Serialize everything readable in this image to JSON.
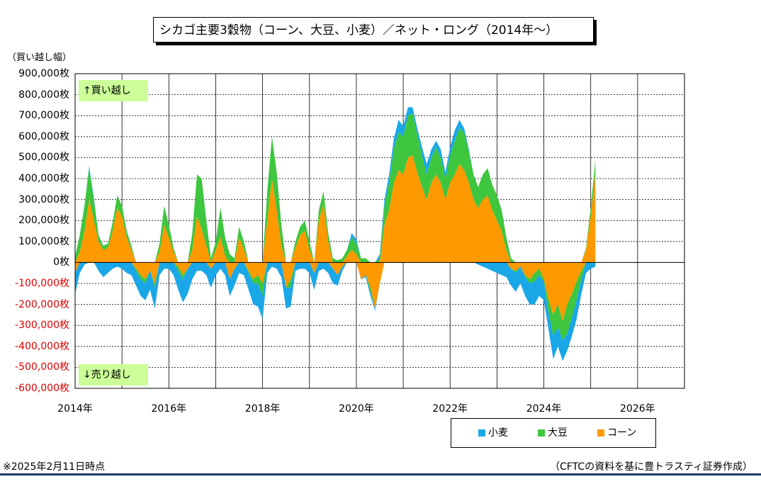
{
  "title": "シカゴ主要3穀物（コーン、大豆、小麦）／ネット・ロング（2014年～）",
  "unit_label": "（買い越し幅）",
  "annotations": {
    "long": "↑買い越し",
    "short": "↓売り越し"
  },
  "legend": [
    {
      "name": "小麦",
      "color": "#1aa7e8"
    },
    {
      "name": "大豆",
      "color": "#3ec63e"
    },
    {
      "name": "コーン",
      "color": "#ff9900"
    }
  ],
  "notes": {
    "date": "※2025年2月11日時点",
    "source": "（CFTCの資料を基に豊トラスティ証券作成）"
  },
  "colors": {
    "wheat": "#1aa7e8",
    "soybean": "#3ec63e",
    "corn": "#ff9900",
    "negative_label": "#e00000"
  },
  "chart_data": {
    "type": "area",
    "stacked": true,
    "x_unit": "year",
    "xlim": [
      2014,
      2027
    ],
    "ylim": [
      -600000,
      900000
    ],
    "y_ticks": [
      "900,000枚",
      "800,000枚",
      "700,000枚",
      "600,000枚",
      "500,000枚",
      "400,000枚",
      "300,000枚",
      "200,000枚",
      "100,000枚",
      "0枚",
      "-100,000枚",
      "-200,000枚",
      "-300,000枚",
      "-400,000枚",
      "-500,000枚",
      "-600,000枚"
    ],
    "y_tick_values": [
      900000,
      800000,
      700000,
      600000,
      500000,
      400000,
      300000,
      200000,
      100000,
      0,
      -100000,
      -200000,
      -300000,
      -400000,
      -500000,
      -600000
    ],
    "x_ticks": [
      "2014年",
      "2016年",
      "2018年",
      "2020年",
      "2022年",
      "2024年",
      "2026年"
    ],
    "x_tick_values": [
      2014,
      2016,
      2018,
      2020,
      2022,
      2024,
      2026
    ],
    "grid": true,
    "legend_position": "bottom-right",
    "x": [
      2014.0,
      2014.1,
      2014.2,
      2014.3,
      2014.4,
      2014.5,
      2014.6,
      2014.7,
      2014.8,
      2014.9,
      2015.0,
      2015.1,
      2015.2,
      2015.3,
      2015.4,
      2015.5,
      2015.6,
      2015.7,
      2015.8,
      2015.9,
      2016.0,
      2016.1,
      2016.2,
      2016.3,
      2016.4,
      2016.5,
      2016.6,
      2016.7,
      2016.8,
      2016.9,
      2017.0,
      2017.1,
      2017.2,
      2017.3,
      2017.4,
      2017.5,
      2017.6,
      2017.7,
      2017.8,
      2017.9,
      2018.0,
      2018.1,
      2018.2,
      2018.3,
      2018.4,
      2018.5,
      2018.6,
      2018.7,
      2018.8,
      2018.9,
      2019.0,
      2019.1,
      2019.2,
      2019.3,
      2019.4,
      2019.5,
      2019.6,
      2019.7,
      2019.8,
      2019.9,
      2020.0,
      2020.1,
      2020.2,
      2020.3,
      2020.4,
      2020.5,
      2020.6,
      2020.7,
      2020.8,
      2020.9,
      2021.0,
      2021.1,
      2021.2,
      2021.3,
      2021.4,
      2021.5,
      2021.6,
      2021.7,
      2021.8,
      2021.9,
      2022.0,
      2022.1,
      2022.2,
      2022.3,
      2022.4,
      2022.5,
      2022.6,
      2022.7,
      2022.8,
      2022.9,
      2023.0,
      2023.1,
      2023.2,
      2023.3,
      2023.4,
      2023.5,
      2023.6,
      2023.7,
      2023.8,
      2023.9,
      2024.0,
      2024.1,
      2024.2,
      2024.3,
      2024.4,
      2024.5,
      2024.6,
      2024.7,
      2024.8,
      2024.9,
      2025.0,
      2025.1
    ],
    "series": [
      {
        "name": "コーン",
        "values": [
          -50000,
          50000,
          150000,
          300000,
          200000,
          100000,
          60000,
          70000,
          150000,
          260000,
          220000,
          120000,
          60000,
          -30000,
          -60000,
          -80000,
          -40000,
          -100000,
          50000,
          180000,
          120000,
          50000,
          -20000,
          -60000,
          -30000,
          60000,
          220000,
          160000,
          80000,
          -30000,
          60000,
          120000,
          30000,
          -80000,
          -30000,
          120000,
          60000,
          -40000,
          -80000,
          -60000,
          -100000,
          200000,
          400000,
          250000,
          80000,
          -120000,
          -80000,
          70000,
          130000,
          150000,
          60000,
          -50000,
          200000,
          280000,
          100000,
          -30000,
          -60000,
          -20000,
          30000,
          60000,
          40000,
          -80000,
          -60000,
          -120000,
          -220000,
          -100000,
          180000,
          250000,
          380000,
          440000,
          420000,
          500000,
          510000,
          430000,
          360000,
          300000,
          380000,
          420000,
          380000,
          300000,
          380000,
          420000,
          470000,
          440000,
          380000,
          300000,
          260000,
          300000,
          320000,
          250000,
          200000,
          150000,
          60000,
          -30000,
          -40000,
          -20000,
          -60000,
          -80000,
          -50000,
          -30000,
          -80000,
          -180000,
          -250000,
          -200000,
          -280000,
          -200000,
          -150000,
          -90000,
          -40000,
          60000,
          220000,
          430000
        ]
      },
      {
        "name": "大豆",
        "values": [
          30000,
          80000,
          120000,
          150000,
          100000,
          30000,
          20000,
          20000,
          40000,
          60000,
          50000,
          30000,
          20000,
          -10000,
          -20000,
          -20000,
          0,
          -20000,
          40000,
          90000,
          60000,
          20000,
          -20000,
          -20000,
          0,
          80000,
          200000,
          240000,
          120000,
          20000,
          40000,
          140000,
          90000,
          40000,
          20000,
          50000,
          40000,
          -10000,
          -20000,
          -40000,
          -60000,
          140000,
          200000,
          180000,
          100000,
          0,
          -40000,
          30000,
          40000,
          50000,
          40000,
          0,
          50000,
          60000,
          40000,
          20000,
          10000,
          20000,
          30000,
          60000,
          50000,
          20000,
          20000,
          -20000,
          0,
          20000,
          90000,
          130000,
          160000,
          180000,
          180000,
          200000,
          200000,
          180000,
          150000,
          120000,
          120000,
          130000,
          120000,
          100000,
          130000,
          160000,
          170000,
          180000,
          150000,
          120000,
          100000,
          120000,
          130000,
          120000,
          120000,
          100000,
          60000,
          20000,
          -10000,
          0,
          -10000,
          -20000,
          -40000,
          -30000,
          -10000,
          -60000,
          -100000,
          -110000,
          -90000,
          -140000,
          -110000,
          -90000,
          -40000,
          10000,
          40000,
          60000
        ]
      },
      {
        "name": "小麦",
        "values": [
          -100000,
          -50000,
          -10000,
          10000,
          10000,
          -40000,
          -70000,
          -50000,
          -30000,
          -20000,
          -30000,
          -50000,
          -60000,
          -70000,
          -80000,
          -80000,
          -90000,
          -100000,
          -60000,
          -30000,
          -30000,
          -60000,
          -90000,
          -110000,
          -120000,
          -80000,
          -40000,
          -40000,
          -60000,
          -90000,
          -60000,
          -30000,
          -60000,
          -80000,
          -80000,
          -50000,
          -60000,
          -80000,
          -100000,
          -110000,
          -110000,
          -50000,
          -20000,
          -30000,
          -70000,
          -100000,
          -90000,
          -40000,
          -30000,
          -30000,
          -50000,
          -80000,
          -40000,
          -30000,
          -50000,
          -70000,
          -50000,
          -20000,
          0,
          20000,
          20000,
          0,
          -10000,
          -20000,
          -10000,
          20000,
          30000,
          40000,
          50000,
          60000,
          50000,
          40000,
          30000,
          30000,
          40000,
          50000,
          40000,
          30000,
          40000,
          30000,
          40000,
          50000,
          40000,
          20000,
          10000,
          0,
          -10000,
          -20000,
          -30000,
          -40000,
          -50000,
          -60000,
          -70000,
          -80000,
          -90000,
          -80000,
          -90000,
          -100000,
          -110000,
          -100000,
          -90000,
          -80000,
          -110000,
          -90000,
          -100000,
          -80000,
          -90000,
          -90000,
          -70000,
          -50000,
          -30000,
          -20000
        ]
      }
    ]
  }
}
